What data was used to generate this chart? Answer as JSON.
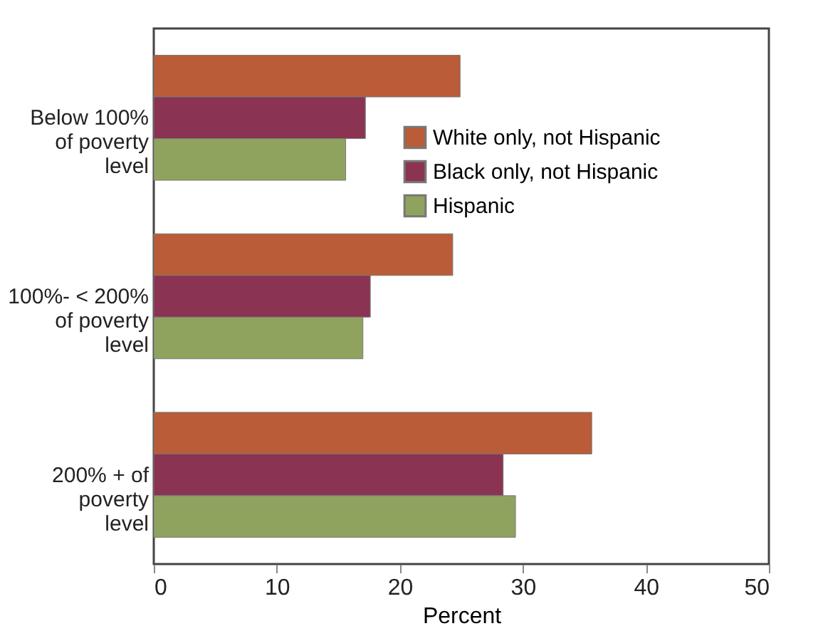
{
  "chart_data": {
    "type": "bar",
    "orientation": "horizontal",
    "xlabel": "Percent",
    "categories": [
      "Below 100% of poverty level",
      "100%- < 200% of poverty level",
      "200% + of poverty level"
    ],
    "series": [
      {
        "name": "White only, not Hispanic",
        "color": "#b95c37",
        "values": [
          24.9,
          24.3,
          35.6
        ]
      },
      {
        "name": "Black only, not Hispanic",
        "color": "#8b3352",
        "values": [
          17.2,
          17.6,
          28.4
        ]
      },
      {
        "name": "Hispanic",
        "color": "#8fa35f",
        "values": [
          15.6,
          17.0,
          29.4
        ]
      }
    ],
    "xlim": [
      0,
      50
    ],
    "xticks": [
      0,
      10,
      20,
      30,
      40,
      50
    ],
    "grid": false,
    "legend": "top right"
  }
}
